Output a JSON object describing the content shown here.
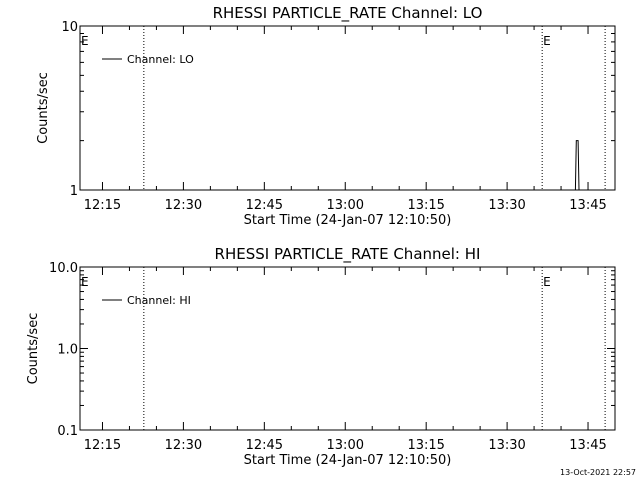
{
  "chart_data": [
    {
      "type": "line",
      "title": "RHESSI PARTICLE_RATE Channel: LO",
      "xlabel": "Start Time (24-Jan-07 12:10:50)",
      "ylabel": "Counts/sec",
      "y_scale": "log",
      "ylim": [
        1,
        10
      ],
      "y_ticks": [
        "1",
        "10"
      ],
      "xlim": [
        "12:10:50",
        "13:50:00"
      ],
      "x_ticks": [
        "12:15",
        "12:30",
        "12:45",
        "13:00",
        "13:15",
        "13:30",
        "13:45"
      ],
      "grid": false,
      "legend_placement": "top-left",
      "legend": [
        "Channel: LO"
      ],
      "event_markers": {
        "dotted_lines": [
          "12:22:40",
          "13:36:30",
          "13:48:10"
        ],
        "labels": [
          {
            "text": "E",
            "at": "12:10:50"
          },
          {
            "text": "E",
            "at": "13:36:30"
          }
        ]
      },
      "series": [
        {
          "name": "Channel: LO",
          "points": [
            [
              "13:42:40",
              1
            ],
            [
              "13:42:50",
              2
            ],
            [
              "13:43:10",
              2
            ],
            [
              "13:43:20",
              1
            ]
          ]
        }
      ]
    },
    {
      "type": "line",
      "title": "RHESSI PARTICLE_RATE Channel: HI",
      "xlabel": "Start Time (24-Jan-07 12:10:50)",
      "ylabel": "Counts/sec",
      "y_scale": "log",
      "ylim": [
        0.1,
        10
      ],
      "y_ticks": [
        "0.1",
        "1.0",
        "10.0"
      ],
      "xlim": [
        "12:10:50",
        "13:50:00"
      ],
      "x_ticks": [
        "12:15",
        "12:30",
        "12:45",
        "13:00",
        "13:15",
        "13:30",
        "13:45"
      ],
      "grid": false,
      "legend_placement": "top-left",
      "legend": [
        "Channel: HI"
      ],
      "event_markers": {
        "dotted_lines": [
          "12:22:40",
          "13:36:30",
          "13:48:10"
        ],
        "labels": [
          {
            "text": "E",
            "at": "12:10:50"
          },
          {
            "text": "E",
            "at": "13:36:30"
          }
        ]
      },
      "series": [
        {
          "name": "Channel: HI",
          "points": []
        }
      ]
    }
  ],
  "footer": {
    "timestamp": "13-Oct-2021 22:57"
  }
}
